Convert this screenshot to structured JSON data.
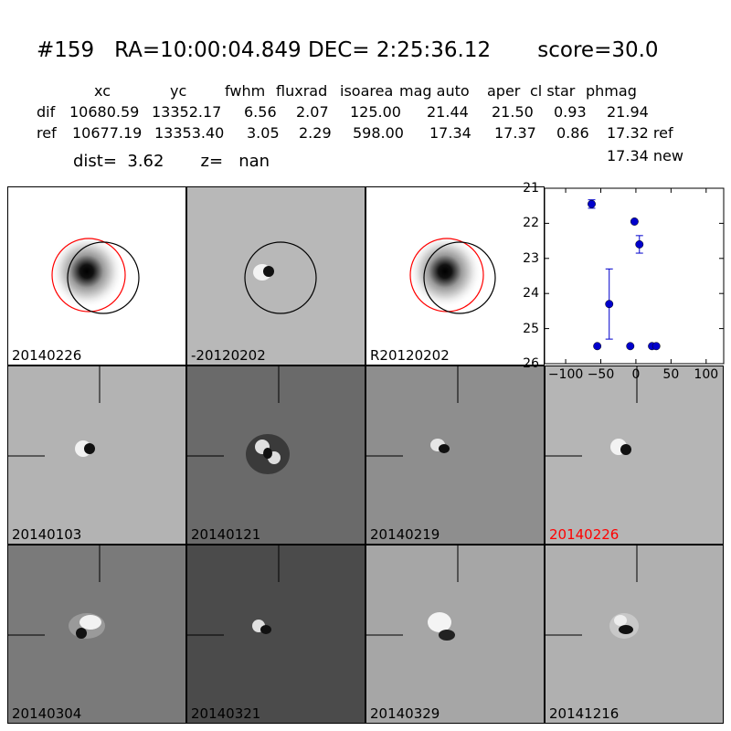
{
  "header": {
    "title": "#159   RA=10:00:04.849 DEC= 2:25:36.12       score=30.0",
    "col_headers": [
      "xc",
      "yc",
      "fwhm",
      "fluxrad",
      "isoarea",
      "mag auto",
      "aper",
      "cl star",
      "phmag"
    ],
    "rows": [
      {
        "label": "dif",
        "values": [
          "10680.59",
          "13352.17",
          "6.56",
          "2.07",
          "125.00",
          "21.44",
          "21.50",
          "0.93",
          "21.94"
        ]
      },
      {
        "label": "ref",
        "values": [
          "10677.19",
          "13353.40",
          "3.05",
          "2.29",
          "598.00",
          "17.34",
          "17.37",
          "0.86",
          "17.32 ref"
        ]
      }
    ],
    "extra_phmag": "17.34 new",
    "dist_line": "dist=  3.62       z=   nan"
  },
  "panels": {
    "top": [
      {
        "label": "20140226",
        "circles": "red-black",
        "bg": "#ffffff"
      },
      {
        "label": "-20120202",
        "circles": "black",
        "bg": "#b8b8b8"
      },
      {
        "label": "R20120202",
        "circles": "red-black",
        "bg": "#ffffff"
      }
    ],
    "middle": [
      {
        "label": "20140103",
        "bg": "#b3b3b3",
        "highlight": false
      },
      {
        "label": "20140121",
        "bg": "#6a6a6a",
        "highlight": false
      },
      {
        "label": "20140219",
        "bg": "#8e8e8e",
        "highlight": false
      },
      {
        "label": "20140226",
        "bg": "#b5b5b5",
        "highlight": true
      }
    ],
    "bottom": [
      {
        "label": "20140304",
        "bg": "#7a7a7a",
        "highlight": false
      },
      {
        "label": "20140321",
        "bg": "#4b4b4b",
        "highlight": false
      },
      {
        "label": "20140329",
        "bg": "#a6a6a6",
        "highlight": false
      },
      {
        "label": "20141216",
        "bg": "#b0b0b0",
        "highlight": false
      }
    ]
  },
  "colors": {
    "highlight": "#ff0000",
    "points": "#0000cc",
    "circle_red": "#ff0000",
    "circle_black": "#000000"
  },
  "chart_data": {
    "type": "scatter",
    "title": "",
    "xlabel": "",
    "ylabel": "",
    "xlim": [
      -130,
      125
    ],
    "ylim": [
      26,
      21
    ],
    "y_inverted": true,
    "xticks": [
      -100,
      -50,
      0,
      50,
      100
    ],
    "yticks": [
      21,
      22,
      23,
      24,
      25,
      26
    ],
    "series": [
      {
        "points": [
          {
            "x": -63,
            "y": 21.45,
            "err": 0.12
          },
          {
            "x": -55,
            "y": 25.5,
            "err": 0
          },
          {
            "x": -38,
            "y": 24.3,
            "err": 1.0
          },
          {
            "x": -8,
            "y": 25.5,
            "err": 0
          },
          {
            "x": -2,
            "y": 21.95,
            "err": 0
          },
          {
            "x": 5,
            "y": 22.6,
            "err": 0.25
          },
          {
            "x": 23,
            "y": 25.5,
            "err": 0
          },
          {
            "x": 29,
            "y": 25.5,
            "err": 0
          }
        ]
      }
    ]
  }
}
